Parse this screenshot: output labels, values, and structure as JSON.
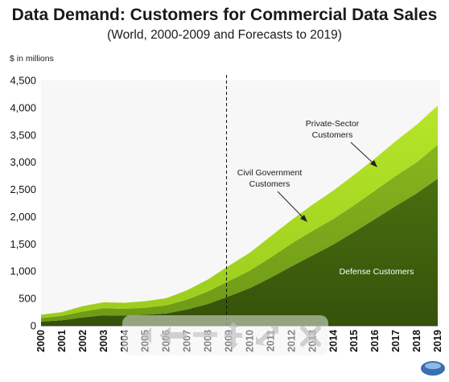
{
  "chart_data": {
    "type": "area",
    "stacked": true,
    "title": "Data Demand: Customers for Commercial Data Sales",
    "subtitle": "(World, 2000-2009 and Forecasts to 2019)",
    "ylabel": "$ in millions",
    "ylim": [
      0,
      4500
    ],
    "yticks": [
      0,
      500,
      1000,
      1500,
      2000,
      2500,
      3000,
      3500,
      4000,
      4500
    ],
    "y_tick_labels": [
      "0",
      "500",
      "1,000",
      "1,500",
      "2,000",
      "2,500",
      "3,000",
      "3,500",
      "4,000",
      "4,500"
    ],
    "categories": [
      "2000",
      "2001",
      "2002",
      "2003",
      "2004",
      "2005",
      "2006",
      "2007",
      "2008",
      "2009",
      "2010",
      "2011",
      "2012",
      "2013",
      "2014",
      "2015",
      "2016",
      "2017",
      "2018",
      "2019"
    ],
    "series": [
      {
        "name": "Defense Customers",
        "color": "#3f5f0b",
        "values": [
          75,
          100,
          150,
          190,
          185,
          200,
          225,
          300,
          400,
          540,
          690,
          880,
          1090,
          1290,
          1490,
          1720,
          1960,
          2200,
          2430,
          2700
        ]
      },
      {
        "name": "Civil Government Customers",
        "color": "#7aa81a",
        "values": [
          65,
          80,
          110,
          130,
          125,
          130,
          150,
          180,
          230,
          280,
          320,
          370,
          420,
          450,
          470,
          490,
          520,
          550,
          570,
          620
        ]
      },
      {
        "name": "Private-Sector Customers",
        "color": "#a4d51f",
        "values": [
          60,
          70,
          100,
          110,
          110,
          120,
          130,
          170,
          220,
          280,
          330,
          390,
          430,
          480,
          520,
          560,
          590,
          640,
          690,
          720
        ]
      }
    ],
    "divider_after": "2009",
    "grid": false,
    "legend": "none"
  },
  "annotations": {
    "private": [
      "Private-Sector",
      "Customers"
    ],
    "civil": [
      "Civil Government",
      "Customers"
    ],
    "defense": "Defense Customers"
  },
  "overlay_icons": [
    "chevron-left-icon",
    "arrow-left-icon",
    "move-icon",
    "expand-icon",
    "close-icon",
    "logo-badge-icon"
  ]
}
